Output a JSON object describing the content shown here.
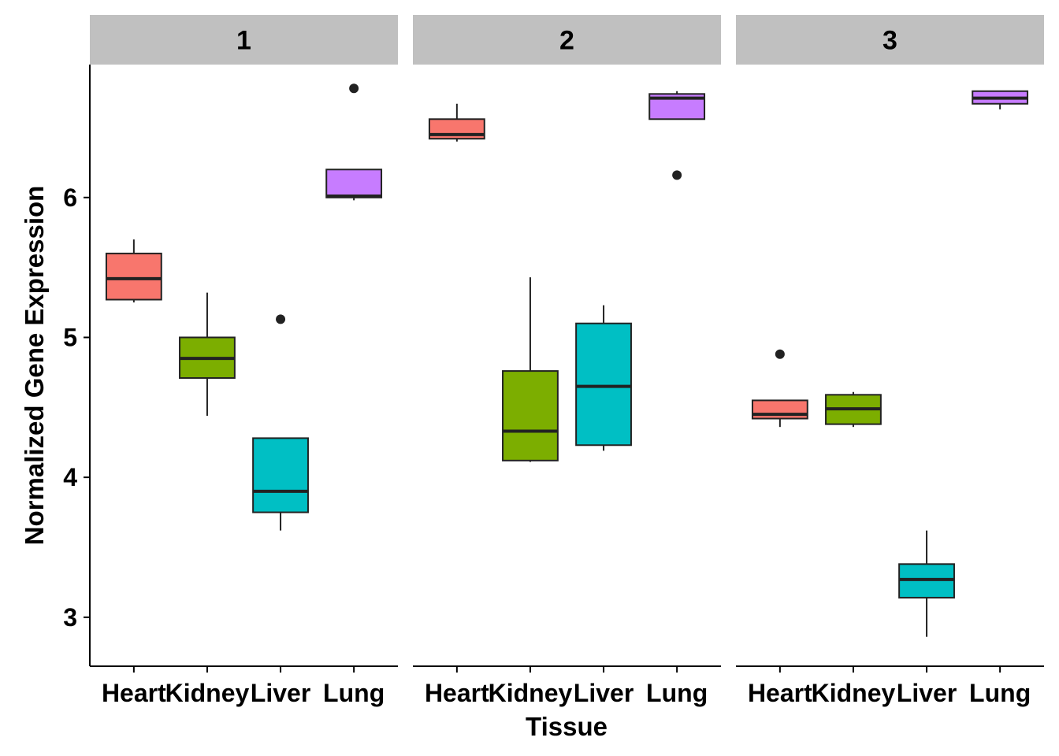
{
  "chart_data": {
    "type": "boxplot",
    "xlabel": "Tissue",
    "ylabel": "Normalized Gene Expression",
    "ylim": [
      2.65,
      6.95
    ],
    "yticks": [
      3,
      4,
      5,
      6
    ],
    "categories": [
      "Heart",
      "Kidney",
      "Liver",
      "Lung"
    ],
    "colors": {
      "Heart": "#F8766D",
      "Kidney": "#7CAE00",
      "Liver": "#00BFC4",
      "Lung": "#C77CFF"
    },
    "strip_color": "#C0C0C0",
    "facets": [
      {
        "label": "1",
        "boxes": [
          {
            "category": "Heart",
            "min": 5.25,
            "q1": 5.27,
            "median": 5.42,
            "q3": 5.6,
            "max": 5.7,
            "outliers": []
          },
          {
            "category": "Kidney",
            "min": 4.44,
            "q1": 4.71,
            "median": 4.85,
            "q3": 5.0,
            "max": 5.32,
            "outliers": []
          },
          {
            "category": "Liver",
            "min": 3.62,
            "q1": 3.75,
            "median": 3.9,
            "q3": 4.28,
            "max": 4.28,
            "outliers": [
              5.13
            ]
          },
          {
            "category": "Lung",
            "min": 5.98,
            "q1": 6.0,
            "median": 6.01,
            "q3": 6.2,
            "max": 6.2,
            "outliers": [
              6.78
            ]
          }
        ]
      },
      {
        "label": "2",
        "boxes": [
          {
            "category": "Heart",
            "min": 6.4,
            "q1": 6.42,
            "median": 6.45,
            "q3": 6.56,
            "max": 6.67,
            "outliers": []
          },
          {
            "category": "Kidney",
            "min": 4.11,
            "q1": 4.12,
            "median": 4.33,
            "q3": 4.76,
            "max": 5.43,
            "outliers": []
          },
          {
            "category": "Liver",
            "min": 4.19,
            "q1": 4.23,
            "median": 4.65,
            "q3": 5.1,
            "max": 5.23,
            "outliers": []
          },
          {
            "category": "Lung",
            "min": 6.56,
            "q1": 6.56,
            "median": 6.71,
            "q3": 6.74,
            "max": 6.76,
            "outliers": [
              6.16
            ]
          }
        ]
      },
      {
        "label": "3",
        "boxes": [
          {
            "category": "Heart",
            "min": 4.36,
            "q1": 4.42,
            "median": 4.45,
            "q3": 4.55,
            "max": 4.55,
            "outliers": [
              4.88
            ]
          },
          {
            "category": "Kidney",
            "min": 4.36,
            "q1": 4.38,
            "median": 4.49,
            "q3": 4.59,
            "max": 4.61,
            "outliers": []
          },
          {
            "category": "Liver",
            "min": 2.86,
            "q1": 3.14,
            "median": 3.27,
            "q3": 3.38,
            "max": 3.62,
            "outliers": []
          },
          {
            "category": "Lung",
            "min": 6.63,
            "q1": 6.67,
            "median": 6.71,
            "q3": 6.76,
            "max": 6.76,
            "outliers": []
          }
        ]
      }
    ]
  }
}
